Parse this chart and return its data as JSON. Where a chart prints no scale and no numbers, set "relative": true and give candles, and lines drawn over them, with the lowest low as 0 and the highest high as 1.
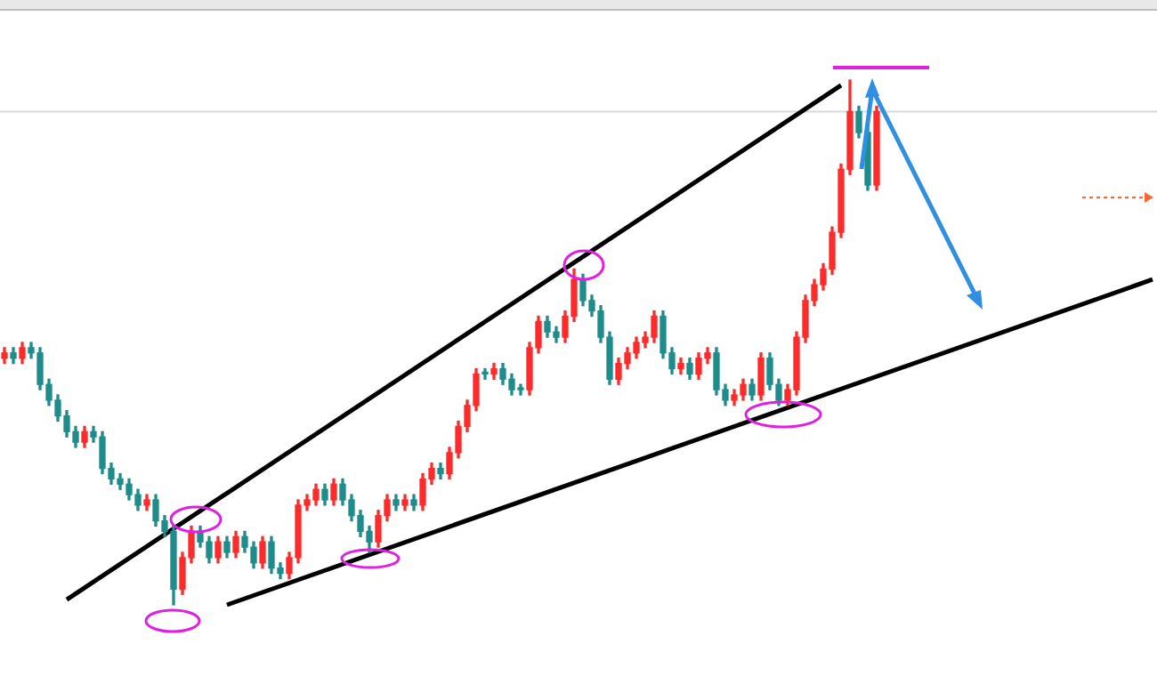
{
  "chart_data": {
    "type": "candlestick",
    "relative": true,
    "categories": [
      null,
      null,
      null,
      null,
      null,
      null,
      null,
      null,
      null,
      null,
      null,
      null,
      null,
      null,
      null,
      null,
      null,
      null,
      null,
      null,
      null,
      null,
      null,
      null,
      null,
      null,
      null,
      null,
      null,
      null,
      null,
      null,
      null,
      null,
      null,
      null,
      null,
      null,
      null,
      null,
      null,
      null,
      null,
      null,
      null,
      null,
      null,
      null,
      null,
      null,
      null,
      null,
      null,
      null,
      null,
      null,
      null,
      null,
      null,
      null,
      null,
      null,
      null,
      null,
      null,
      null,
      null,
      null,
      null,
      null,
      null,
      null,
      null,
      null,
      null,
      null,
      null,
      null,
      null,
      null,
      null,
      null,
      null,
      null,
      null,
      null,
      null,
      null,
      null,
      null,
      null,
      null,
      null,
      null,
      null,
      null,
      null,
      null,
      null,
      null,
      null,
      null,
      null,
      null,
      null,
      null,
      null,
      null,
      null,
      null,
      null,
      null,
      null,
      null,
      null,
      null,
      null,
      null,
      null,
      null,
      null,
      null,
      null,
      null,
      null,
      null,
      null,
      null,
      null,
      null
    ],
    "series": [
      {
        "ohlc": [
          [
            0.47,
            0.49,
            0.46,
            0.48
          ],
          [
            0.48,
            0.49,
            0.46,
            0.47
          ],
          [
            0.47,
            0.5,
            0.46,
            0.49
          ],
          [
            0.49,
            0.5,
            0.47,
            0.48
          ],
          [
            0.48,
            0.49,
            0.41,
            0.42
          ],
          [
            0.42,
            0.43,
            0.38,
            0.39
          ],
          [
            0.39,
            0.4,
            0.35,
            0.36
          ],
          [
            0.36,
            0.37,
            0.32,
            0.33
          ],
          [
            0.33,
            0.34,
            0.3,
            0.31
          ],
          [
            0.31,
            0.34,
            0.3,
            0.33
          ],
          [
            0.33,
            0.34,
            0.31,
            0.32
          ],
          [
            0.32,
            0.33,
            0.25,
            0.26
          ],
          [
            0.26,
            0.27,
            0.23,
            0.24
          ],
          [
            0.24,
            0.25,
            0.22,
            0.23
          ],
          [
            0.23,
            0.24,
            0.2,
            0.21
          ],
          [
            0.21,
            0.22,
            0.18,
            0.19
          ],
          [
            0.19,
            0.21,
            0.18,
            0.2
          ],
          [
            0.2,
            0.21,
            0.15,
            0.16
          ],
          [
            0.16,
            0.17,
            0.13,
            0.14
          ],
          [
            0.14,
            0.15,
            0,
            0.03
          ],
          [
            0.03,
            0.1,
            0.02,
            0.09
          ],
          [
            0.09,
            0.15,
            0.08,
            0.14
          ],
          [
            0.14,
            0.15,
            0.11,
            0.12
          ],
          [
            0.12,
            0.13,
            0.08,
            0.09
          ],
          [
            0.09,
            0.13,
            0.08,
            0.12
          ],
          [
            0.12,
            0.13,
            0.09,
            0.1
          ],
          [
            0.1,
            0.14,
            0.09,
            0.13
          ],
          [
            0.13,
            0.14,
            0.1,
            0.11
          ],
          [
            0.11,
            0.12,
            0.07,
            0.08
          ],
          [
            0.08,
            0.13,
            0.07,
            0.12
          ],
          [
            0.12,
            0.13,
            0.06,
            0.07
          ],
          [
            0.07,
            0.08,
            0.05,
            0.06
          ],
          [
            0.06,
            0.1,
            0.05,
            0.09
          ],
          [
            0.09,
            0.2,
            0.08,
            0.19
          ],
          [
            0.19,
            0.21,
            0.18,
            0.2
          ],
          [
            0.2,
            0.23,
            0.19,
            0.22
          ],
          [
            0.22,
            0.23,
            0.19,
            0.2
          ],
          [
            0.2,
            0.24,
            0.19,
            0.23
          ],
          [
            0.23,
            0.24,
            0.19,
            0.2
          ],
          [
            0.2,
            0.21,
            0.16,
            0.17
          ],
          [
            0.17,
            0.18,
            0.13,
            0.14
          ],
          [
            0.14,
            0.15,
            0.1,
            0.12
          ],
          [
            0.12,
            0.18,
            0.11,
            0.17
          ],
          [
            0.17,
            0.21,
            0.16,
            0.2
          ],
          [
            0.2,
            0.21,
            0.18,
            0.19
          ],
          [
            0.19,
            0.21,
            0.18,
            0.2
          ],
          [
            0.2,
            0.21,
            0.18,
            0.19
          ],
          [
            0.19,
            0.25,
            0.18,
            0.24
          ],
          [
            0.24,
            0.27,
            0.23,
            0.26
          ],
          [
            0.26,
            0.27,
            0.24,
            0.25
          ],
          [
            0.25,
            0.3,
            0.24,
            0.29
          ],
          [
            0.29,
            0.35,
            0.28,
            0.34
          ],
          [
            0.34,
            0.39,
            0.33,
            0.38
          ],
          [
            0.38,
            0.45,
            0.37,
            0.44
          ],
          [
            0.44,
            0.45,
            0.43,
            0.44
          ],
          [
            0.44,
            0.46,
            0.43,
            0.45
          ],
          [
            0.45,
            0.46,
            0.42,
            0.43
          ],
          [
            0.43,
            0.44,
            0.4,
            0.41
          ],
          [
            0.41,
            0.42,
            0.4,
            0.41
          ],
          [
            0.41,
            0.5,
            0.4,
            0.49
          ],
          [
            0.49,
            0.55,
            0.48,
            0.54
          ],
          [
            0.54,
            0.55,
            0.51,
            0.52
          ],
          [
            0.52,
            0.53,
            0.5,
            0.51
          ],
          [
            0.51,
            0.56,
            0.5,
            0.55
          ],
          [
            0.55,
            0.64,
            0.54,
            0.62
          ],
          [
            0.62,
            0.63,
            0.57,
            0.58
          ],
          [
            0.58,
            0.59,
            0.55,
            0.56
          ],
          [
            0.56,
            0.57,
            0.5,
            0.51
          ],
          [
            0.51,
            0.52,
            0.42,
            0.43
          ],
          [
            0.43,
            0.47,
            0.42,
            0.46
          ],
          [
            0.46,
            0.49,
            0.45,
            0.48
          ],
          [
            0.48,
            0.51,
            0.47,
            0.5
          ],
          [
            0.5,
            0.52,
            0.49,
            0.51
          ],
          [
            0.51,
            0.56,
            0.5,
            0.55
          ],
          [
            0.55,
            0.56,
            0.47,
            0.48
          ],
          [
            0.48,
            0.49,
            0.44,
            0.45
          ],
          [
            0.45,
            0.47,
            0.44,
            0.46
          ],
          [
            0.46,
            0.47,
            0.43,
            0.44
          ],
          [
            0.44,
            0.48,
            0.43,
            0.47
          ],
          [
            0.47,
            0.49,
            0.46,
            0.48
          ],
          [
            0.48,
            0.49,
            0.4,
            0.41
          ],
          [
            0.41,
            0.42,
            0.38,
            0.39
          ],
          [
            0.39,
            0.41,
            0.38,
            0.4
          ],
          [
            0.4,
            0.43,
            0.39,
            0.42
          ],
          [
            0.42,
            0.43,
            0.39,
            0.4
          ],
          [
            0.4,
            0.48,
            0.39,
            0.47
          ],
          [
            0.47,
            0.48,
            0.41,
            0.42
          ],
          [
            0.42,
            0.43,
            0.38,
            0.39
          ],
          [
            0.39,
            0.42,
            0.38,
            0.41
          ],
          [
            0.41,
            0.52,
            0.4,
            0.51
          ],
          [
            0.51,
            0.59,
            0.5,
            0.58
          ],
          [
            0.58,
            0.62,
            0.57,
            0.61
          ],
          [
            0.61,
            0.65,
            0.6,
            0.64
          ],
          [
            0.64,
            0.72,
            0.63,
            0.71
          ],
          [
            0.71,
            0.84,
            0.7,
            0.83
          ],
          [
            0.83,
            1,
            0.82,
            0.94
          ],
          [
            0.94,
            0.95,
            0.89,
            0.9
          ],
          [
            0.9,
            0.91,
            0.79,
            0.8
          ],
          [
            0.8,
            0.95,
            0.79,
            0.94
          ],
          null,
          null,
          null,
          null,
          null,
          null,
          null,
          null,
          null,
          null,
          null,
          null,
          null,
          null,
          null,
          null,
          null,
          null,
          null,
          null,
          null,
          null,
          null,
          null,
          null,
          null,
          null,
          null,
          null,
          null,
          null
        ],
        "colors": [
          "#ff2a2a",
          "#1f8c8c",
          "#ff2a2a",
          "#1f8c8c",
          "#1f8c8c",
          "#1f8c8c",
          "#1f8c8c",
          "#1f8c8c",
          "#1f8c8c",
          "#ff2a2a",
          "#1f8c8c",
          "#1f8c8c",
          "#1f8c8c",
          "#1f8c8c",
          "#1f8c8c",
          "#1f8c8c",
          "#ff2a2a",
          "#1f8c8c",
          "#1f8c8c",
          "#1f8c8c",
          "#ff2a2a",
          "#ff2a2a",
          "#1f8c8c",
          "#1f8c8c",
          "#ff2a2a",
          "#1f8c8c",
          "#ff2a2a",
          "#1f8c8c",
          "#1f8c8c",
          "#ff2a2a",
          "#1f8c8c",
          "#1f8c8c",
          "#ff2a2a",
          "#ff2a2a",
          "#ff2a2a",
          "#ff2a2a",
          "#1f8c8c",
          "#ff2a2a",
          "#1f8c8c",
          "#1f8c8c",
          "#1f8c8c",
          "#1f8c8c",
          "#ff2a2a",
          "#ff2a2a",
          "#1f8c8c",
          "#ff2a2a",
          "#1f8c8c",
          "#ff2a2a",
          "#ff2a2a",
          "#1f8c8c",
          "#ff2a2a",
          "#ff2a2a",
          "#ff2a2a",
          "#ff2a2a",
          "#1f8c8c",
          "#ff2a2a",
          "#1f8c8c",
          "#1f8c8c",
          "#1f8c8c",
          "#ff2a2a",
          "#ff2a2a",
          "#1f8c8c",
          "#1f8c8c",
          "#ff2a2a",
          "#ff2a2a",
          "#1f8c8c",
          "#1f8c8c",
          "#1f8c8c",
          "#1f8c8c",
          "#ff2a2a",
          "#ff2a2a",
          "#ff2a2a",
          "#ff2a2a",
          "#ff2a2a",
          "#1f8c8c",
          "#1f8c8c",
          "#ff2a2a",
          "#1f8c8c",
          "#ff2a2a",
          "#ff2a2a",
          "#1f8c8c",
          "#1f8c8c",
          "#ff2a2a",
          "#ff2a2a",
          "#1f8c8c",
          "#ff2a2a",
          "#1f8c8c",
          "#1f8c8c",
          "#ff2a2a",
          "#ff2a2a",
          "#ff2a2a",
          "#ff2a2a",
          "#ff2a2a",
          "#ff2a2a",
          "#ff2a2a",
          "#ff2a2a",
          "#1f8c8c",
          "#1f8c8c",
          "#ff2a2a",
          null,
          null,
          null,
          null,
          null,
          null,
          null,
          null,
          null,
          null,
          null,
          null,
          null,
          null,
          null,
          null,
          null,
          null,
          null,
          null,
          null,
          null,
          null,
          null,
          null,
          null,
          null,
          null,
          null,
          null,
          null
        ]
      },
      {
        "type": "line",
        "color": "#000000",
        "values": [
          null,
          null,
          null,
          null,
          null,
          null,
          null,
          0.01,
          null,
          null,
          null,
          null,
          null,
          null,
          null,
          null,
          null,
          null,
          null,
          null,
          null,
          null,
          null,
          null,
          null,
          null,
          null,
          null,
          null,
          null,
          null,
          null,
          null,
          null,
          null,
          null,
          null,
          null,
          null,
          null,
          null,
          null,
          null,
          null,
          null,
          null,
          null,
          null,
          null,
          null,
          null,
          null,
          null,
          null,
          null,
          null,
          null,
          null,
          null,
          null,
          null,
          null,
          null,
          null,
          null,
          null,
          null,
          null,
          null,
          null,
          null,
          null,
          null,
          null,
          null,
          null,
          null,
          null,
          null,
          null,
          null,
          null,
          null,
          null,
          null,
          null,
          null,
          null,
          null,
          null,
          null,
          null,
          null,
          null,
          0.99,
          null,
          null,
          null,
          null,
          null,
          null,
          null,
          null,
          null,
          null,
          null,
          null,
          null,
          null,
          null,
          null,
          null,
          null,
          null,
          null,
          null,
          null,
          null,
          null,
          null,
          null,
          null,
          null,
          null,
          null,
          null,
          null,
          null,
          null,
          null
        ]
      },
      {
        "type": "line",
        "color": "#000000",
        "values": [
          null,
          null,
          null,
          null,
          null,
          null,
          null,
          null,
          null,
          null,
          null,
          null,
          null,
          null,
          null,
          null,
          null,
          null,
          null,
          null,
          null,
          null,
          null,
          null,
          null,
          0,
          null,
          null,
          null,
          null,
          null,
          null,
          null,
          null,
          null,
          null,
          null,
          null,
          null,
          null,
          null,
          null,
          null,
          null,
          null,
          null,
          null,
          null,
          null,
          null,
          null,
          null,
          null,
          null,
          null,
          null,
          null,
          null,
          null,
          null,
          null,
          null,
          null,
          null,
          null,
          null,
          null,
          null,
          null,
          null,
          null,
          null,
          null,
          null,
          null,
          null,
          null,
          null,
          null,
          null,
          null,
          null,
          null,
          null,
          null,
          null,
          null,
          null,
          null,
          null,
          null,
          null,
          null,
          null,
          null,
          null,
          null,
          null,
          null,
          null,
          null,
          null,
          null,
          null,
          null,
          null,
          null,
          null,
          null,
          null,
          null,
          null,
          null,
          null,
          null,
          null,
          null,
          null,
          null,
          null,
          null,
          null,
          null,
          null,
          null,
          null,
          null,
          null,
          null,
          0.62
        ]
      }
    ],
    "ref_lines": [
      {
        "axis": "y",
        "value": 0.94,
        "color": "#d9d9d9"
      }
    ]
  }
}
